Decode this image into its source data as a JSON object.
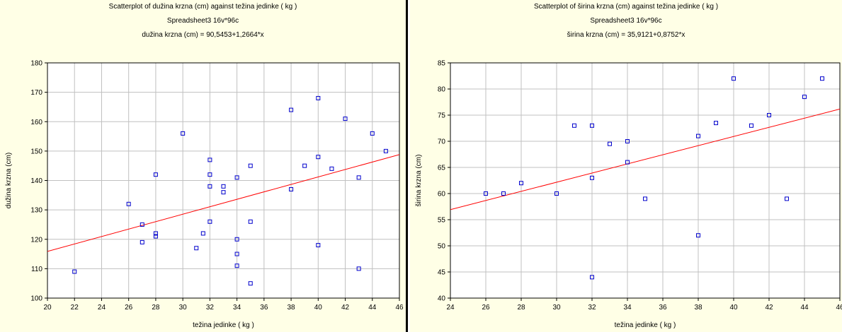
{
  "chart_data": [
    {
      "type": "scatter",
      "title": "Scatterplot of dužina krzna (cm) against težina jedinke ( kg )",
      "subtitle": "Spreadsheet3 16v*96c",
      "equation": "dužina krzna (cm) = 90,5453+1,2664*x",
      "xlabel": "težina jedinke ( kg )",
      "ylabel": "dužina krzna (cm)",
      "xlim": [
        20,
        46
      ],
      "ylim": [
        100,
        180
      ],
      "xticks": [
        20,
        22,
        24,
        26,
        28,
        30,
        32,
        34,
        36,
        38,
        40,
        42,
        44,
        46
      ],
      "yticks": [
        100,
        110,
        120,
        130,
        140,
        150,
        160,
        170,
        180
      ],
      "grid": true,
      "regression": {
        "intercept": 90.5453,
        "slope": 1.2664
      },
      "colors": {
        "points": "#0000cc",
        "line": "#ff0000",
        "grid": "#c0c0c0",
        "background": "#ffffe6"
      },
      "points": [
        {
          "x": 22,
          "y": 109
        },
        {
          "x": 26,
          "y": 132
        },
        {
          "x": 27,
          "y": 125
        },
        {
          "x": 27,
          "y": 119
        },
        {
          "x": 28,
          "y": 142
        },
        {
          "x": 28,
          "y": 122
        },
        {
          "x": 28,
          "y": 121
        },
        {
          "x": 30,
          "y": 156
        },
        {
          "x": 31,
          "y": 117
        },
        {
          "x": 31.5,
          "y": 122
        },
        {
          "x": 32,
          "y": 147
        },
        {
          "x": 32,
          "y": 142
        },
        {
          "x": 32,
          "y": 138
        },
        {
          "x": 32,
          "y": 126
        },
        {
          "x": 33,
          "y": 138
        },
        {
          "x": 33,
          "y": 136
        },
        {
          "x": 34,
          "y": 141
        },
        {
          "x": 34,
          "y": 120
        },
        {
          "x": 34,
          "y": 115
        },
        {
          "x": 34,
          "y": 111
        },
        {
          "x": 35,
          "y": 145
        },
        {
          "x": 35,
          "y": 126
        },
        {
          "x": 35,
          "y": 105
        },
        {
          "x": 38,
          "y": 164
        },
        {
          "x": 38,
          "y": 137
        },
        {
          "x": 39,
          "y": 145
        },
        {
          "x": 40,
          "y": 168
        },
        {
          "x": 40,
          "y": 148
        },
        {
          "x": 40,
          "y": 118
        },
        {
          "x": 41,
          "y": 144
        },
        {
          "x": 42,
          "y": 161
        },
        {
          "x": 43,
          "y": 141
        },
        {
          "x": 43,
          "y": 110
        },
        {
          "x": 44,
          "y": 156
        },
        {
          "x": 45,
          "y": 150
        }
      ]
    },
    {
      "type": "scatter",
      "title": "Scatterplot of širina krzna (cm) against težina jedinke ( kg )",
      "subtitle": "Spreadsheet3 16v*96c",
      "equation": "širina krzna (cm) = 35,9121+0,8752*x",
      "xlabel": "težina jedinke ( kg )",
      "ylabel": "širina krzna (cm)",
      "xlim": [
        24,
        46
      ],
      "ylim": [
        40,
        85
      ],
      "xticks": [
        24,
        26,
        28,
        30,
        32,
        34,
        36,
        38,
        40,
        42,
        44,
        46
      ],
      "yticks": [
        40,
        45,
        50,
        55,
        60,
        65,
        70,
        75,
        80,
        85
      ],
      "grid": true,
      "regression": {
        "intercept": 35.9121,
        "slope": 0.8752
      },
      "colors": {
        "points": "#0000cc",
        "line": "#ff0000",
        "grid": "#c0c0c0",
        "background": "#ffffe6"
      },
      "points": [
        {
          "x": 26,
          "y": 60
        },
        {
          "x": 27,
          "y": 60
        },
        {
          "x": 28,
          "y": 62
        },
        {
          "x": 30,
          "y": 60
        },
        {
          "x": 31,
          "y": 73
        },
        {
          "x": 32,
          "y": 73
        },
        {
          "x": 32,
          "y": 63
        },
        {
          "x": 32,
          "y": 44
        },
        {
          "x": 33,
          "y": 69.5
        },
        {
          "x": 34,
          "y": 70
        },
        {
          "x": 34,
          "y": 66
        },
        {
          "x": 35,
          "y": 59
        },
        {
          "x": 38,
          "y": 71
        },
        {
          "x": 38,
          "y": 52
        },
        {
          "x": 39,
          "y": 73.5
        },
        {
          "x": 40,
          "y": 82
        },
        {
          "x": 41,
          "y": 73
        },
        {
          "x": 42,
          "y": 75
        },
        {
          "x": 43,
          "y": 59
        },
        {
          "x": 44,
          "y": 78.5
        },
        {
          "x": 45,
          "y": 82
        }
      ]
    }
  ]
}
